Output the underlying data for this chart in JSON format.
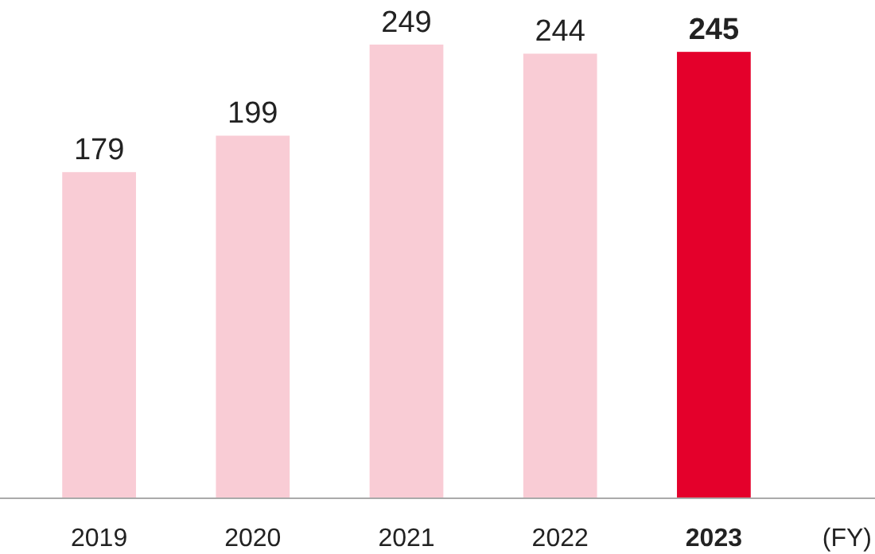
{
  "chart_data": {
    "type": "bar",
    "categories": [
      "2019",
      "2020",
      "2021",
      "2022",
      "2023"
    ],
    "values": [
      179,
      199,
      249,
      244,
      245
    ],
    "colors": [
      "#f9ccd5",
      "#f9ccd5",
      "#f9ccd5",
      "#f9ccd5",
      "#e4002b"
    ],
    "xlabel": "(FY)",
    "data_labels": true
  }
}
